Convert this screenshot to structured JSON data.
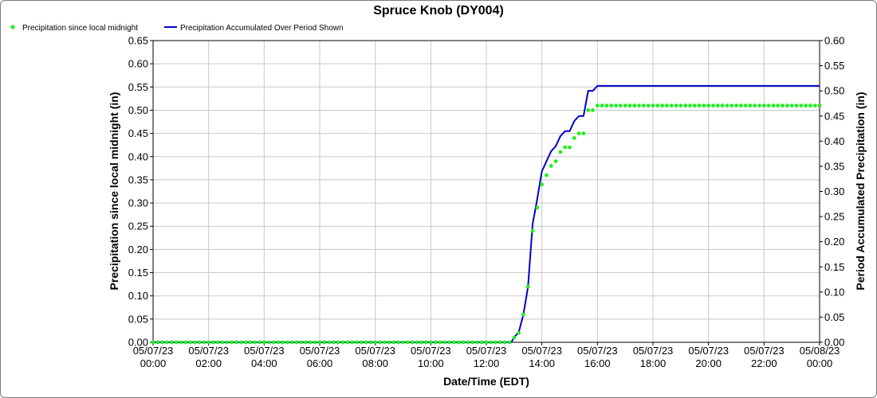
{
  "colors": {
    "dots": "#22ee22",
    "line": "#0000cc",
    "grid": "#c8c8c8"
  },
  "chart_data": {
    "type": "line",
    "title": "Spruce Knob (DY004)",
    "xlabel": "Date/Time (EDT)",
    "ylabel_left": "Precipitation since local midnight (in)",
    "ylabel_right": "Period Accumulated Precipitation (in)",
    "x_range_hours": [
      0,
      24
    ],
    "y_left_range": [
      0,
      0.65
    ],
    "y_right_range": [
      0,
      0.6
    ],
    "legend_placement": "top-left",
    "grid": true,
    "x_ticks": [
      {
        "date": "05/07/23",
        "time": "00:00"
      },
      {
        "date": "05/07/23",
        "time": "02:00"
      },
      {
        "date": "05/07/23",
        "time": "04:00"
      },
      {
        "date": "05/07/23",
        "time": "06:00"
      },
      {
        "date": "05/07/23",
        "time": "08:00"
      },
      {
        "date": "05/07/23",
        "time": "10:00"
      },
      {
        "date": "05/07/23",
        "time": "12:00"
      },
      {
        "date": "05/07/23",
        "time": "14:00"
      },
      {
        "date": "05/07/23",
        "time": "16:00"
      },
      {
        "date": "05/07/23",
        "time": "18:00"
      },
      {
        "date": "05/07/23",
        "time": "20:00"
      },
      {
        "date": "05/07/23",
        "time": "22:00"
      },
      {
        "date": "05/08/23",
        "time": "00:00"
      }
    ],
    "y_left_ticks": [
      "0.00",
      "0.05",
      "0.10",
      "0.15",
      "0.20",
      "0.25",
      "0.30",
      "0.35",
      "0.40",
      "0.45",
      "0.50",
      "0.55",
      "0.60",
      "0.65"
    ],
    "y_right_ticks": [
      "0.00",
      "0.05",
      "0.10",
      "0.15",
      "0.20",
      "0.25",
      "0.30",
      "0.35",
      "0.40",
      "0.45",
      "0.50",
      "0.55",
      "0.60"
    ],
    "series": [
      {
        "name": "Precipitation since local midnight",
        "axis": "left",
        "style": "dots",
        "interval_minutes": 10,
        "nonzero_points": [
          {
            "x": 13.0,
            "y": 0.01
          },
          {
            "x": 13.1667,
            "y": 0.02
          },
          {
            "x": 13.3333,
            "y": 0.06
          },
          {
            "x": 13.5,
            "y": 0.12
          },
          {
            "x": 13.6667,
            "y": 0.24
          },
          {
            "x": 13.8333,
            "y": 0.29
          },
          {
            "x": 14.0,
            "y": 0.34
          },
          {
            "x": 14.1667,
            "y": 0.36
          },
          {
            "x": 14.3333,
            "y": 0.38
          },
          {
            "x": 14.5,
            "y": 0.39
          },
          {
            "x": 14.6667,
            "y": 0.41
          },
          {
            "x": 14.8333,
            "y": 0.42
          },
          {
            "x": 15.0,
            "y": 0.42
          },
          {
            "x": 15.1667,
            "y": 0.44
          },
          {
            "x": 15.3333,
            "y": 0.45
          },
          {
            "x": 15.5,
            "y": 0.45
          },
          {
            "x": 15.6667,
            "y": 0.5
          },
          {
            "x": 15.8333,
            "y": 0.5
          },
          {
            "x": 16.0,
            "y": 0.51
          }
        ],
        "final_value": 0.51
      },
      {
        "name": "Precipitation Accumulated Over Period Shown",
        "axis": "right",
        "style": "line",
        "points": [
          {
            "x": 0,
            "y": 0.0
          },
          {
            "x": 12.9,
            "y": 0.0
          },
          {
            "x": 13.0,
            "y": 0.01
          },
          {
            "x": 13.1667,
            "y": 0.02
          },
          {
            "x": 13.3333,
            "y": 0.055
          },
          {
            "x": 13.5,
            "y": 0.11
          },
          {
            "x": 13.6667,
            "y": 0.235
          },
          {
            "x": 13.8333,
            "y": 0.285
          },
          {
            "x": 14.0,
            "y": 0.34
          },
          {
            "x": 14.1667,
            "y": 0.36
          },
          {
            "x": 14.3333,
            "y": 0.38
          },
          {
            "x": 14.5,
            "y": 0.39
          },
          {
            "x": 14.6667,
            "y": 0.41
          },
          {
            "x": 14.8333,
            "y": 0.42
          },
          {
            "x": 15.0,
            "y": 0.42
          },
          {
            "x": 15.1667,
            "y": 0.44
          },
          {
            "x": 15.3333,
            "y": 0.45
          },
          {
            "x": 15.5,
            "y": 0.45
          },
          {
            "x": 15.6667,
            "y": 0.5
          },
          {
            "x": 15.8333,
            "y": 0.5
          },
          {
            "x": 16.0,
            "y": 0.51
          },
          {
            "x": 24.0,
            "y": 0.51
          }
        ]
      }
    ]
  }
}
